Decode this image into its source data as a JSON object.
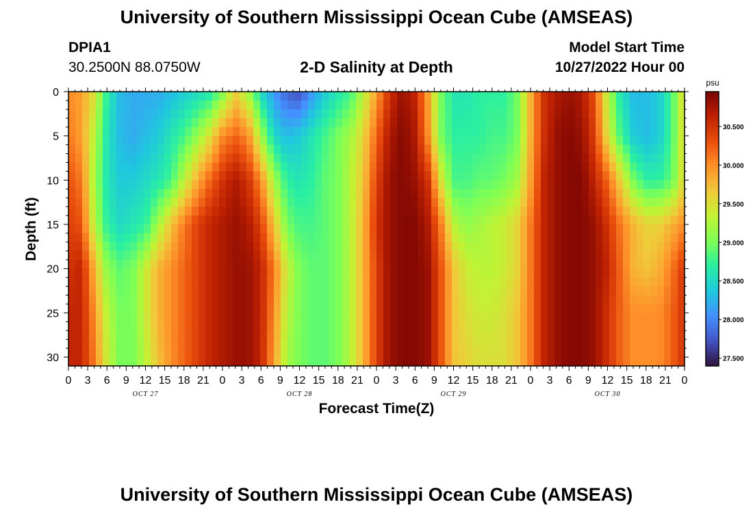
{
  "header": {
    "title": "University of Southern Mississippi Ocean Cube (AMSEAS)",
    "station": "DPIA1",
    "coords": "30.2500N  88.0750W",
    "subtitle": "2-D Salinity at Depth",
    "model_start_label": "Model Start Time",
    "model_start_value": "10/27/2022 Hour 00"
  },
  "footer": {
    "title": "University of Southern Mississippi Ocean Cube (AMSEAS)"
  },
  "colors": {
    "colormap": [
      "#30123b",
      "#4454c4",
      "#4490fe",
      "#1fc8de",
      "#29efa2",
      "#7dff56",
      "#c1f334",
      "#f1ca3a",
      "#fe922a",
      "#ea4f0d",
      "#be2102",
      "#7a0403"
    ]
  },
  "chart_data": {
    "type": "heatmap",
    "title": "2-D Salinity at Depth",
    "xlabel": "Forecast Time(Z)",
    "ylabel": "Depth (ft)",
    "x_tick_labels": [
      "0",
      "3",
      "6",
      "9",
      "12",
      "15",
      "18",
      "21",
      "0",
      "3",
      "6",
      "9",
      "12",
      "15",
      "18",
      "21",
      "0",
      "3",
      "6",
      "9",
      "12",
      "15",
      "18",
      "21",
      "0",
      "3",
      "6",
      "9",
      "12",
      "15",
      "18",
      "21",
      "0"
    ],
    "x_range_hours": [
      0,
      96
    ],
    "date_labels": [
      {
        "label": "OCT 27",
        "hour": 12
      },
      {
        "label": "OCT 28",
        "hour": 36
      },
      {
        "label": "OCT 29",
        "hour": 60
      },
      {
        "label": "OCT 30",
        "hour": 84
      }
    ],
    "y_ticks": [
      0,
      5,
      10,
      15,
      20,
      25,
      30
    ],
    "y_range_ft": [
      0,
      31
    ],
    "colorbar": {
      "unit": "psu",
      "min": 27.4,
      "max": 30.95,
      "tick_labels": [
        "27.500",
        "28.000",
        "28.500",
        "29.000",
        "29.500",
        "30.000",
        "30.500"
      ]
    },
    "salinity_psu": {
      "depth_ft": [
        0,
        5,
        10,
        15,
        20,
        25,
        31
      ],
      "hours": [
        0,
        2,
        4,
        6,
        8,
        10,
        12,
        14,
        16,
        18,
        20,
        22,
        24,
        26,
        28,
        30,
        32,
        34,
        36,
        38,
        40,
        42,
        44,
        46,
        48,
        50,
        52,
        54,
        56,
        58,
        60,
        62,
        64,
        66,
        68,
        70,
        72,
        74,
        76,
        78,
        80,
        82,
        84,
        86,
        88,
        90,
        92,
        94,
        96
      ],
      "values": [
        [
          30.0,
          29.9,
          29.5,
          28.7,
          28.3,
          28.2,
          28.2,
          28.2,
          28.3,
          28.4,
          28.5,
          28.6,
          29.0,
          29.6,
          29.2,
          28.5,
          28.1,
          27.8,
          27.7,
          28.1,
          28.4,
          28.6,
          28.8,
          29.3,
          29.9,
          30.5,
          30.8,
          30.6,
          29.9,
          29.0,
          28.6,
          28.6,
          28.7,
          28.7,
          28.7,
          29.0,
          29.8,
          30.5,
          30.7,
          30.8,
          30.7,
          30.3,
          29.3,
          28.6,
          28.3,
          28.3,
          28.4,
          28.8,
          29.6
        ],
        [
          30.1,
          29.9,
          29.3,
          28.6,
          28.3,
          28.2,
          28.3,
          28.4,
          28.6,
          28.8,
          29.1,
          29.5,
          30.0,
          30.2,
          30.0,
          29.2,
          28.5,
          28.3,
          28.4,
          28.6,
          28.8,
          29.0,
          29.2,
          29.6,
          30.2,
          30.7,
          30.9,
          30.7,
          30.0,
          29.0,
          28.7,
          28.7,
          28.7,
          28.8,
          28.8,
          29.0,
          29.8,
          30.5,
          30.8,
          30.9,
          30.8,
          30.4,
          29.5,
          28.8,
          28.4,
          28.3,
          28.4,
          28.8,
          29.6
        ],
        [
          30.3,
          30.1,
          29.2,
          28.6,
          28.4,
          28.4,
          28.5,
          28.6,
          28.8,
          29.3,
          29.8,
          30.2,
          30.5,
          30.7,
          30.5,
          30.0,
          29.2,
          28.7,
          28.6,
          28.7,
          28.9,
          29.0,
          29.3,
          29.7,
          30.4,
          30.8,
          30.9,
          30.8,
          30.5,
          29.5,
          28.8,
          28.8,
          28.9,
          28.9,
          29.0,
          29.2,
          29.9,
          30.6,
          30.8,
          30.9,
          30.9,
          30.6,
          30.2,
          29.6,
          29.0,
          28.7,
          28.7,
          28.9,
          29.6
        ],
        [
          30.4,
          30.3,
          29.3,
          28.7,
          28.5,
          28.6,
          28.7,
          29.2,
          29.7,
          30.1,
          30.4,
          30.6,
          30.7,
          30.8,
          30.7,
          30.4,
          29.7,
          29.0,
          28.8,
          28.8,
          28.9,
          29.0,
          29.3,
          29.8,
          30.5,
          30.8,
          30.9,
          30.9,
          30.7,
          30.1,
          29.3,
          29.1,
          29.2,
          29.3,
          29.4,
          29.6,
          30.1,
          30.6,
          30.8,
          30.9,
          30.9,
          30.8,
          30.5,
          30.1,
          29.8,
          29.6,
          29.6,
          29.8,
          30.0
        ],
        [
          30.5,
          30.6,
          29.8,
          29.1,
          28.9,
          29.0,
          29.4,
          29.8,
          30.0,
          30.2,
          30.4,
          30.6,
          30.7,
          30.8,
          30.8,
          30.6,
          30.1,
          29.4,
          29.0,
          28.9,
          28.9,
          29.0,
          29.3,
          29.8,
          30.4,
          30.8,
          30.9,
          30.9,
          30.8,
          30.3,
          29.7,
          29.4,
          29.3,
          29.3,
          29.4,
          29.6,
          30.1,
          30.6,
          30.8,
          30.9,
          30.9,
          30.8,
          30.6,
          30.2,
          29.8,
          29.7,
          29.8,
          30.1,
          30.5
        ],
        [
          30.6,
          30.6,
          30.0,
          29.3,
          29.0,
          29.0,
          29.4,
          29.8,
          30.0,
          30.2,
          30.4,
          30.6,
          30.7,
          30.8,
          30.8,
          30.6,
          30.0,
          29.3,
          29.0,
          28.9,
          28.9,
          29.0,
          29.3,
          29.8,
          30.4,
          30.8,
          30.9,
          30.9,
          30.8,
          30.3,
          29.7,
          29.5,
          29.4,
          29.4,
          29.5,
          29.7,
          30.1,
          30.6,
          30.8,
          30.9,
          30.9,
          30.8,
          30.5,
          30.2,
          30.0,
          30.0,
          30.0,
          30.2,
          30.5
        ],
        [
          30.6,
          30.6,
          30.1,
          29.4,
          29.0,
          29.0,
          29.3,
          29.7,
          30.0,
          30.2,
          30.4,
          30.6,
          30.7,
          30.8,
          30.8,
          30.6,
          29.9,
          29.2,
          29.0,
          28.9,
          28.9,
          29.0,
          29.3,
          29.8,
          30.4,
          30.8,
          30.9,
          30.9,
          30.8,
          30.3,
          29.7,
          29.6,
          29.5,
          29.5,
          29.5,
          29.7,
          30.1,
          30.6,
          30.8,
          30.9,
          30.9,
          30.8,
          30.5,
          30.2,
          30.0,
          30.0,
          30.0,
          30.2,
          30.5
        ]
      ]
    }
  }
}
